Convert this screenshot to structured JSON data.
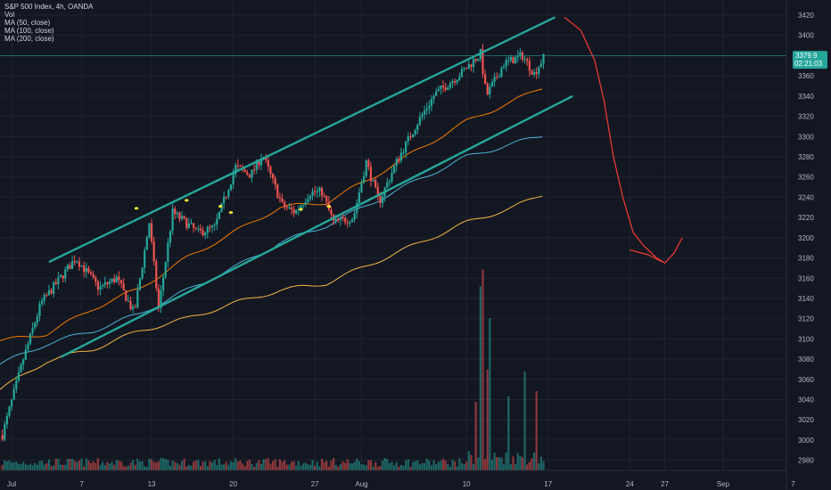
{
  "legend": {
    "title": "S&P 500 Index, 4h, OANDA",
    "vol": "Vol",
    "ma50": "MA (50, close)",
    "ma100": "MA (100, close)",
    "ma200": "MA (200, close)"
  },
  "price_badge": {
    "price": "3379.9",
    "countdown": "02:21:03",
    "color": "#26a69a"
  },
  "colors": {
    "background": "#131722",
    "grid": "#1f2330",
    "up": "#26a69a",
    "down": "#ef5350",
    "channel": "#26a69a",
    "ma50": "#f57c00",
    "ma100": "#4fb3d9",
    "ma200": "#f5b642",
    "drawing": "#e53935",
    "marker": "#ffeb3b"
  },
  "chart_data": {
    "type": "candlestick",
    "title": "S&P 500 Index, 4h, OANDA",
    "ylim": [
      2970,
      3435
    ],
    "y_ticks": [
      2980,
      3000,
      3020,
      3040,
      3060,
      3080,
      3100,
      3120,
      3140,
      3160,
      3180,
      3200,
      3220,
      3240,
      3260,
      3280,
      3300,
      3320,
      3340,
      3360,
      3380,
      3400,
      3420
    ],
    "x_ticks": [
      {
        "label": "Jul",
        "day": 1
      },
      {
        "label": "7",
        "day": 7
      },
      {
        "label": "13",
        "day": 13
      },
      {
        "label": "20",
        "day": 20
      },
      {
        "label": "27",
        "day": 27
      },
      {
        "label": "Aug",
        "day": 31
      },
      {
        "label": "10",
        "day": 40
      },
      {
        "label": "17",
        "day": 47
      },
      {
        "label": "24",
        "day": 54
      },
      {
        "label": "27",
        "day": 57
      },
      {
        "label": "Sep",
        "day": 62
      },
      {
        "label": "7",
        "day": 68
      }
    ],
    "last_price": 3379.9,
    "countdown": "02:21:03",
    "series_keypoints": {
      "price": [
        [
          0.2,
          3005
        ],
        [
          2,
          3080
        ],
        [
          3.5,
          3135
        ],
        [
          6.5,
          3180
        ],
        [
          8.5,
          3150
        ],
        [
          10,
          3160
        ],
        [
          11.5,
          3125
        ],
        [
          12.8,
          3215
        ],
        [
          13.6,
          3130
        ],
        [
          14.8,
          3225
        ],
        [
          17,
          3205
        ],
        [
          18.4,
          3210
        ],
        [
          20.2,
          3270
        ],
        [
          21.5,
          3262
        ],
        [
          22.5,
          3282
        ],
        [
          24.2,
          3232
        ],
        [
          25.3,
          3225
        ],
        [
          26.6,
          3245
        ],
        [
          27.6,
          3245
        ],
        [
          28.6,
          3215
        ],
        [
          30.3,
          3220
        ],
        [
          31.4,
          3275
        ],
        [
          32.5,
          3235
        ],
        [
          34,
          3275
        ],
        [
          35.7,
          3312
        ],
        [
          37.3,
          3342
        ],
        [
          39.5,
          3362
        ],
        [
          41.2,
          3382
        ],
        [
          41.7,
          3340
        ],
        [
          43.2,
          3372
        ],
        [
          44.8,
          3380
        ],
        [
          45.8,
          3362
        ],
        [
          46.6,
          3378
        ]
      ],
      "ma50": [
        [
          0,
          3098
        ],
        [
          4,
          3105
        ],
        [
          8,
          3130
        ],
        [
          12,
          3150
        ],
        [
          16,
          3180
        ],
        [
          20,
          3205
        ],
        [
          24,
          3230
        ],
        [
          28,
          3235
        ],
        [
          32,
          3260
        ],
        [
          36,
          3288
        ],
        [
          40,
          3315
        ],
        [
          44,
          3335
        ],
        [
          46.8,
          3350
        ]
      ],
      "ma100": [
        [
          0,
          3075
        ],
        [
          4,
          3095
        ],
        [
          8,
          3108
        ],
        [
          12,
          3125
        ],
        [
          16,
          3148
        ],
        [
          20,
          3170
        ],
        [
          24,
          3195
        ],
        [
          28,
          3212
        ],
        [
          32,
          3235
        ],
        [
          36,
          3258
        ],
        [
          40,
          3280
        ],
        [
          44,
          3293
        ],
        [
          46.8,
          3302
        ]
      ],
      "ma200": [
        [
          0,
          3050
        ],
        [
          4,
          3078
        ],
        [
          8,
          3090
        ],
        [
          12,
          3108
        ],
        [
          16,
          3120
        ],
        [
          20,
          3135
        ],
        [
          24,
          3148
        ],
        [
          28,
          3155
        ],
        [
          32,
          3175
        ],
        [
          36,
          3195
        ],
        [
          40,
          3215
        ],
        [
          44,
          3230
        ],
        [
          46.8,
          3244
        ]
      ]
    },
    "channel_lines": [
      {
        "name": "channel-upper",
        "from": [
          4.2,
          3176
        ],
        "to": [
          47.6,
          3418
        ]
      },
      {
        "name": "channel-lower",
        "from": [
          5.2,
          3082
        ],
        "to": [
          49.1,
          3340
        ]
      }
    ],
    "projection_path": [
      [
        48.4,
        3418
      ],
      [
        49.8,
        3405
      ],
      [
        51.0,
        3375
      ],
      [
        51.8,
        3335
      ],
      [
        52.6,
        3280
      ],
      [
        53.4,
        3240
      ],
      [
        54.3,
        3205
      ],
      [
        55.2,
        3192
      ],
      [
        56.3,
        3180
      ],
      [
        57.0,
        3175
      ],
      [
        57.8,
        3185
      ],
      [
        58.5,
        3200
      ]
    ],
    "projection_tail": [
      [
        54.0,
        3188
      ],
      [
        55.6,
        3183
      ],
      [
        56.8,
        3176
      ]
    ],
    "markers": [
      [
        11.7,
        3229
      ],
      [
        16.0,
        3237
      ],
      [
        18.9,
        3231
      ],
      [
        19.8,
        3225
      ],
      [
        25.8,
        3228
      ],
      [
        28.2,
        3231
      ]
    ],
    "volume_highlights": [
      [
        40.8,
        3.0
      ],
      [
        41.3,
        5.7
      ],
      [
        41.9,
        4.0
      ],
      [
        43.6,
        3.0
      ],
      [
        45.0,
        3.5
      ],
      [
        46.0,
        3.0
      ]
    ]
  }
}
